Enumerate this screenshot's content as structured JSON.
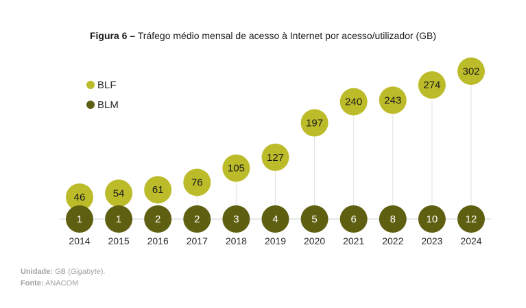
{
  "title": {
    "prefix": "Figura 6 –",
    "text": "Tráfego médio mensal de acesso à Internet por acesso/utilizador (GB)"
  },
  "footnotes": {
    "unit_label": "Unidade:",
    "unit_text_before": "GB (",
    "unit_text_italic": "Gigabyte",
    "unit_text_after": ").",
    "source_label": "Fonte:",
    "source_text": "ANACOM"
  },
  "colors": {
    "blf": "#bcbb29",
    "blm": "#5f5f12",
    "blf_text": "#1a1a1a",
    "blm_text": "#ffffff",
    "axis": "#cfcfcf",
    "stem": "#e2e2e2"
  },
  "chart_data": {
    "type": "scatter",
    "categories": [
      "2014",
      "2015",
      "2016",
      "2017",
      "2018",
      "2019",
      "2020",
      "2021",
      "2022",
      "2023",
      "2024"
    ],
    "series": [
      {
        "name": "BLF",
        "values": [
          46,
          54,
          61,
          76,
          105,
          127,
          197,
          240,
          243,
          274,
          302
        ]
      },
      {
        "name": "BLM",
        "values": [
          1,
          1,
          2,
          2,
          3,
          4,
          5,
          6,
          8,
          10,
          12
        ]
      }
    ],
    "legend": "top-left",
    "grid": false
  }
}
